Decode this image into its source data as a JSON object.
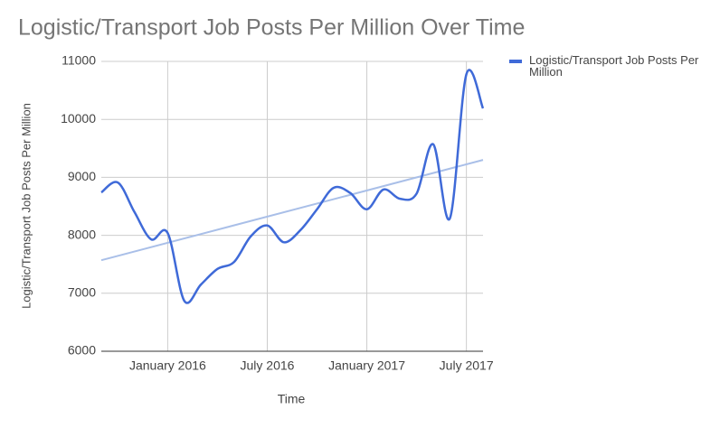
{
  "chart_data": {
    "type": "line",
    "title": "Logistic/Transport Job Posts Per Million Over Time",
    "x_label": "Time",
    "y_label": "Logistic/Transport Job Posts Per Million",
    "x": [
      "2015-09",
      "2015-10",
      "2015-11",
      "2015-12",
      "2016-01",
      "2016-02",
      "2016-03",
      "2016-04",
      "2016-05",
      "2016-06",
      "2016-07",
      "2016-08",
      "2016-09",
      "2016-10",
      "2016-11",
      "2016-12",
      "2017-01",
      "2017-02",
      "2017-03",
      "2017-04",
      "2017-05",
      "2017-06",
      "2017-07",
      "2017-08"
    ],
    "series": [
      {
        "name": "Logistic/Transport Job Posts Per Million",
        "color": "#3f6ad8",
        "values": [
          8740,
          8910,
          8400,
          7930,
          8040,
          6870,
          7150,
          7420,
          7540,
          7980,
          8170,
          7880,
          8090,
          8450,
          8820,
          8730,
          8450,
          8790,
          8630,
          8720,
          9570,
          8290,
          10780,
          10190
        ]
      }
    ],
    "trendline": {
      "color": "#a9bfe8",
      "values": [
        7570,
        9300
      ]
    },
    "xlim": [
      "2015-09",
      "2017-08"
    ],
    "xticks": [
      {
        "value": "2016-01",
        "label": "January 2016"
      },
      {
        "value": "2016-07",
        "label": "July 2016"
      },
      {
        "value": "2017-01",
        "label": "January 2017"
      },
      {
        "value": "2017-07",
        "label": "July 2017"
      }
    ],
    "ylim": [
      6000,
      11000
    ],
    "yticks": [
      6000,
      7000,
      8000,
      9000,
      10000,
      11000
    ],
    "grid": true,
    "legend": "right"
  }
}
